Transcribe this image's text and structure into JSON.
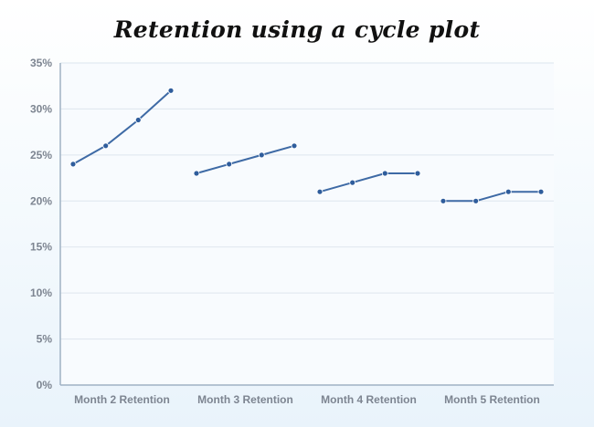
{
  "chart_data": {
    "type": "line",
    "title": "Retention using a cycle plot",
    "xlabel": "",
    "ylabel": "",
    "ylim": [
      0,
      35
    ],
    "y_ticks": [
      "0%",
      "5%",
      "10%",
      "15%",
      "20%",
      "25%",
      "30%",
      "35%"
    ],
    "grid": true,
    "legend": "none",
    "categories": [
      "Month 2 Retention",
      "Month 3 Retention",
      "Month 4 Retention",
      "Month 5 Retention"
    ],
    "series": [
      {
        "values": [
          24,
          26,
          28.8,
          32
        ]
      },
      {
        "values": [
          23,
          24,
          25,
          26
        ]
      },
      {
        "values": [
          21,
          22,
          23,
          23
        ]
      },
      {
        "values": [
          20,
          20,
          21,
          21
        ]
      }
    ],
    "colors": {
      "line": "#3e6aa5",
      "marker": "#2f5d9c",
      "grid": "#dde6ee",
      "axis": "#9fb2c4",
      "plot_bg": "#f8fbfe",
      "tick_text": "#7d8591"
    }
  }
}
